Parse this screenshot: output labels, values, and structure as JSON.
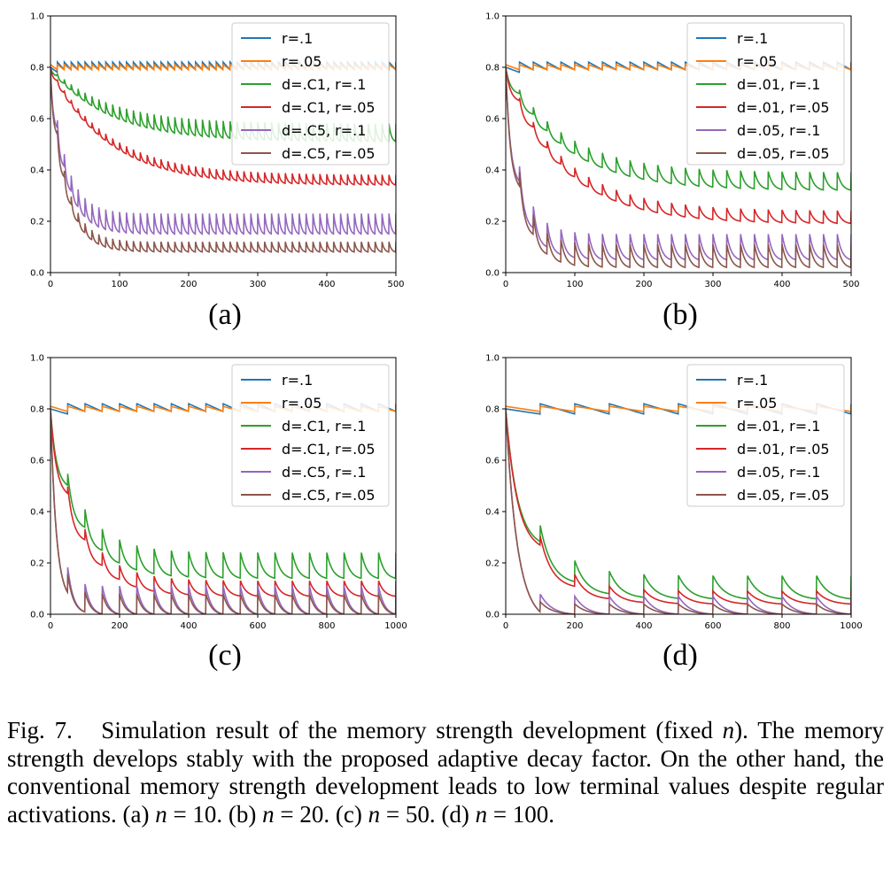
{
  "colors": {
    "r=.1": "#1f77b4",
    "r=.05": "#ff7f0e",
    "d=.01, r=.1": "#2ca02c",
    "d=.01, r=.05": "#d62728",
    "d=.05, r=.1": "#9467bd",
    "d=.05, r=.05": "#8c564b"
  },
  "legend": [
    "r=.1",
    "r=.05",
    "d=.C1, r=.1",
    "d=.C1, r=.05",
    "d=.C5, r=.1",
    "d=.C5, r=.05"
  ],
  "legend_bd": [
    "r=.1",
    "r=.05",
    "d=.01, r=.1",
    "d=.01, r=.05",
    "d=.05, r=.1",
    "d=.05, r=.05"
  ],
  "panel_labels": [
    "(a)",
    "(b)",
    "(c)",
    "(d)"
  ],
  "caption": {
    "fig_number": "Fig. 7.",
    "text_1": "Simulation result of the memory strength development (fixed ",
    "n": "n",
    "text_2": "). The memory strength develops stably with the proposed adaptive decay factor. On the other hand, the conventional memory strength development leads to low terminal values despite regular activations. (a) ",
    "eq_a": " = 10. (b) ",
    "eq_b": " = 20. (c) ",
    "eq_c": " = 50. (d) ",
    "eq_d": " = 100."
  },
  "chart_data": [
    {
      "type": "line",
      "panel": "(a)",
      "activation_interval": 10,
      "xlim": [
        0,
        500
      ],
      "ylim": [
        0,
        1.0
      ],
      "xticks": [
        "0",
        "100",
        "200",
        "300",
        "400",
        "500"
      ],
      "yticks": [
        "0.0",
        "0.2",
        "0.4",
        "0.6",
        "0.8",
        "1.0"
      ],
      "series": [
        {
          "name": "r=.1",
          "start": 0.8,
          "min": 0.79,
          "max": 0.82
        },
        {
          "name": "r=.05",
          "start": 0.8,
          "min": 0.79,
          "max": 0.81
        },
        {
          "name": "d=.C1, r=.1",
          "start": 0.8,
          "min": 0.51,
          "max": 0.58
        },
        {
          "name": "d=.C1, r=.05",
          "start": 0.8,
          "min": 0.34,
          "max": 0.38
        },
        {
          "name": "d=.C5, r=.1",
          "start": 0.8,
          "min": 0.15,
          "max": 0.23
        },
        {
          "name": "d=.C5, r=.05",
          "start": 0.8,
          "min": 0.08,
          "max": 0.12
        }
      ]
    },
    {
      "type": "line",
      "panel": "(b)",
      "activation_interval": 20,
      "xlim": [
        0,
        500
      ],
      "ylim": [
        0,
        1.0
      ],
      "xticks": [
        "0",
        "100",
        "200",
        "300",
        "400",
        "500"
      ],
      "yticks": [
        "0.0",
        "0.2",
        "0.4",
        "0.6",
        "0.8",
        "1.0"
      ],
      "series": [
        {
          "name": "r=.1",
          "start": 0.8,
          "min": 0.79,
          "max": 0.82
        },
        {
          "name": "r=.05",
          "start": 0.8,
          "min": 0.79,
          "max": 0.81
        },
        {
          "name": "d=.01, r=.1",
          "start": 0.8,
          "min": 0.32,
          "max": 0.39
        },
        {
          "name": "d=.01, r=.05",
          "start": 0.8,
          "min": 0.19,
          "max": 0.24
        },
        {
          "name": "d=.05, r=.1",
          "start": 0.8,
          "min": 0.05,
          "max": 0.15
        },
        {
          "name": "d=.05, r=.05",
          "start": 0.8,
          "min": 0.02,
          "max": 0.11
        }
      ]
    },
    {
      "type": "line",
      "panel": "(c)",
      "activation_interval": 50,
      "xlim": [
        0,
        1000
      ],
      "ylim": [
        0,
        1.0
      ],
      "xticks": [
        "0",
        "200",
        "400",
        "600",
        "800",
        "1000"
      ],
      "yticks": [
        "0.0",
        "0.2",
        "0.4",
        "0.6",
        "0.8",
        "1.0"
      ],
      "series": [
        {
          "name": "r=.1",
          "start": 0.8,
          "min": 0.79,
          "max": 0.82
        },
        {
          "name": "r=.05",
          "start": 0.8,
          "min": 0.79,
          "max": 0.81
        },
        {
          "name": "d=.C1, r=.1",
          "start": 0.8,
          "min": 0.14,
          "max": 0.24
        },
        {
          "name": "d=.C1, r=.05",
          "start": 0.8,
          "min": 0.07,
          "max": 0.13
        },
        {
          "name": "d=.C5, r=.1",
          "start": 0.8,
          "min": 0.0,
          "max": 0.11
        },
        {
          "name": "d=.C5, r=.05",
          "start": 0.8,
          "min": 0.0,
          "max": 0.08
        }
      ]
    },
    {
      "type": "line",
      "panel": "(d)",
      "activation_interval": 100,
      "xlim": [
        0,
        1000
      ],
      "ylim": [
        0,
        1.0
      ],
      "xticks": [
        "0",
        "200",
        "400",
        "600",
        "800",
        "1000"
      ],
      "yticks": [
        "0.0",
        "0.2",
        "0.4",
        "0.6",
        "0.8",
        "1.0"
      ],
      "series": [
        {
          "name": "r=.1",
          "start": 0.8,
          "min": 0.78,
          "max": 0.82
        },
        {
          "name": "r=.05",
          "start": 0.8,
          "min": 0.79,
          "max": 0.81
        },
        {
          "name": "d=.01, r=.1",
          "start": 0.8,
          "min": 0.06,
          "max": 0.15
        },
        {
          "name": "d=.01, r=.05",
          "start": 0.8,
          "min": 0.04,
          "max": 0.09
        },
        {
          "name": "d=.05, r=.1",
          "start": 0.8,
          "min": 0.0,
          "max": 0.07
        },
        {
          "name": "d=.05, r=.05",
          "start": 0.8,
          "min": 0.0,
          "max": 0.04
        }
      ]
    }
  ]
}
